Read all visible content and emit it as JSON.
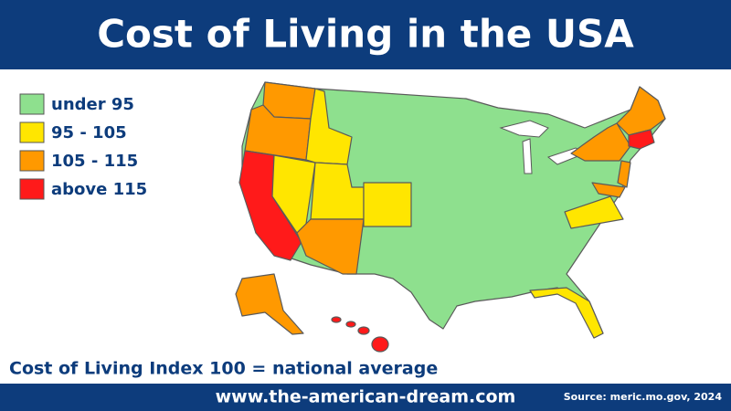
{
  "header": {
    "title": "Cost of Living in the USA"
  },
  "legend": {
    "items": [
      {
        "label": "under 95",
        "color": "#8ee08e"
      },
      {
        "label": "95 - 105",
        "color": "#ffe600"
      },
      {
        "label": "105 - 115",
        "color": "#ff9900"
      },
      {
        "label": "above 115",
        "color": "#ff1a1a"
      }
    ]
  },
  "note": "Cost of Living Index 100 = national average",
  "footer": {
    "url": "www.the-american-dream.com",
    "source": "Source: meric.mo.gov, 2024"
  }
}
